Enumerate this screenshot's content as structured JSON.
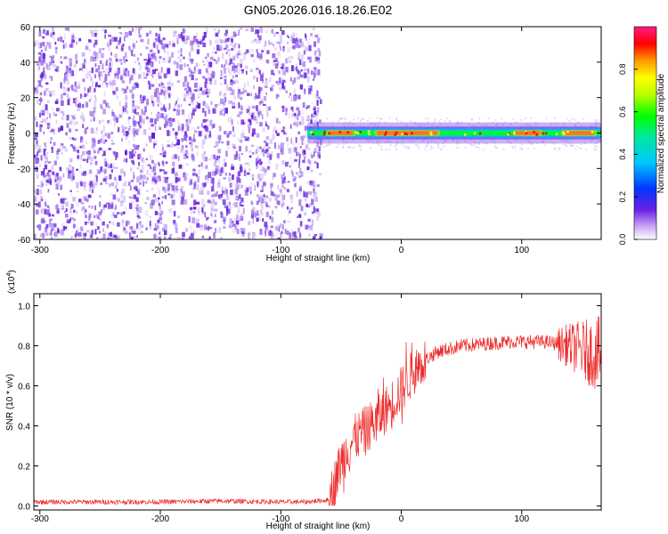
{
  "figure_title": "GN05.2026.016.18.26.E02",
  "chart_data": [
    {
      "type": "heatmap",
      "title": "",
      "xlabel": "Height of straight line (km)",
      "ylabel": "Frequency (Hz)",
      "xlim": [
        -305,
        166
      ],
      "ylim": [
        -60,
        60
      ],
      "xticks": [
        -300,
        -200,
        -100,
        0,
        100
      ],
      "yticks": [
        60,
        40,
        20,
        0,
        -20,
        -40,
        -60
      ],
      "noise_region": {
        "x_range": [
          -305,
          -72
        ],
        "y_range": [
          -60,
          60
        ],
        "description_color": "#7a3ae0"
      },
      "signal_band": {
        "x_range": [
          -78,
          166
        ],
        "center_frequency_hz": 0,
        "half_width_hz": 2,
        "peak_segments": [
          [
            -60,
            -40
          ],
          [
            -20,
            30
          ],
          [
            95,
            115
          ],
          [
            135,
            160
          ]
        ]
      },
      "colorbar": {
        "label": "Normalized spectral amplitude",
        "range": [
          0.0,
          1.0
        ],
        "ticks": [
          "0.0",
          "0.2",
          "0.4",
          "0.6",
          "0.8"
        ],
        "tick_values": [
          0.0,
          0.2,
          0.4,
          0.6,
          0.8
        ]
      }
    },
    {
      "type": "line",
      "title": "",
      "xlabel": "Height of straight line (km)",
      "ylabel": "SNR (10 * v/v)",
      "y_multiplier_label": "(x10",
      "y_multiplier_exp": "4",
      "xlim": [
        -305,
        166
      ],
      "ylim": [
        -0.02,
        1.06
      ],
      "xticks": [
        -300,
        -200,
        -100,
        0,
        100
      ],
      "yticks": [
        "0.0",
        "0.2",
        "0.4",
        "0.6",
        "0.8",
        "1.0"
      ],
      "ytick_values": [
        0.0,
        0.2,
        0.4,
        0.6,
        0.8,
        1.0
      ],
      "series": [
        {
          "name": "SNR",
          "color": "#ee2d2d",
          "x": [
            -305,
            -250,
            -200,
            -150,
            -100,
            -80,
            -60,
            -55,
            -50,
            -45,
            -40,
            -30,
            -20,
            -10,
            0,
            10,
            20,
            30,
            50,
            70,
            90,
            100,
            120,
            140,
            150,
            166
          ],
          "y": [
            0.02,
            0.02,
            0.02,
            0.025,
            0.02,
            0.02,
            0.03,
            0.12,
            0.22,
            0.28,
            0.33,
            0.38,
            0.43,
            0.5,
            0.58,
            0.67,
            0.73,
            0.77,
            0.8,
            0.81,
            0.82,
            0.82,
            0.82,
            0.8,
            0.78,
            0.75
          ]
        }
      ]
    }
  ]
}
